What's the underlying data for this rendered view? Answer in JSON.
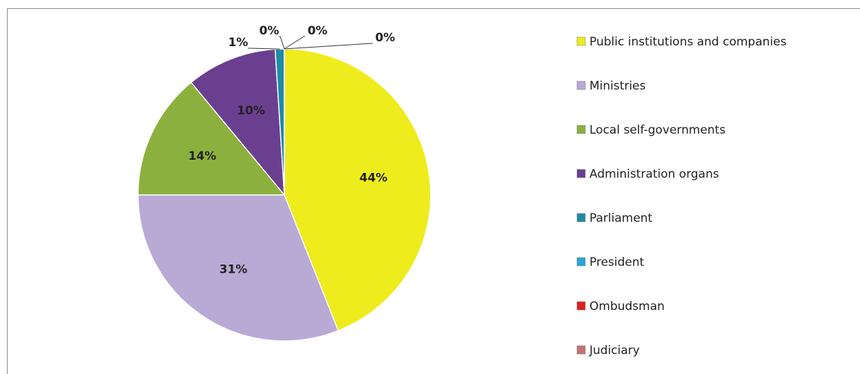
{
  "chart_data": {
    "type": "pie",
    "categories": [
      "Public institutions and companies",
      "Ministries",
      "Local self-governments",
      "Administration organs",
      "Parliament",
      "President",
      "Ombudsman",
      "Judiciary"
    ],
    "values": [
      44,
      31,
      14,
      10,
      1,
      0,
      0,
      0
    ],
    "value_labels": [
      "44%",
      "31%",
      "14%",
      "10%",
      "1%",
      "0%",
      "0%",
      "0%"
    ],
    "colors": [
      "#eeec1c",
      "#b9a9d5",
      "#8cb03e",
      "#6b3f8f",
      "#1f8aa6",
      "#2aa6d8",
      "#e02020",
      "#c27272"
    ],
    "legend": "right"
  }
}
